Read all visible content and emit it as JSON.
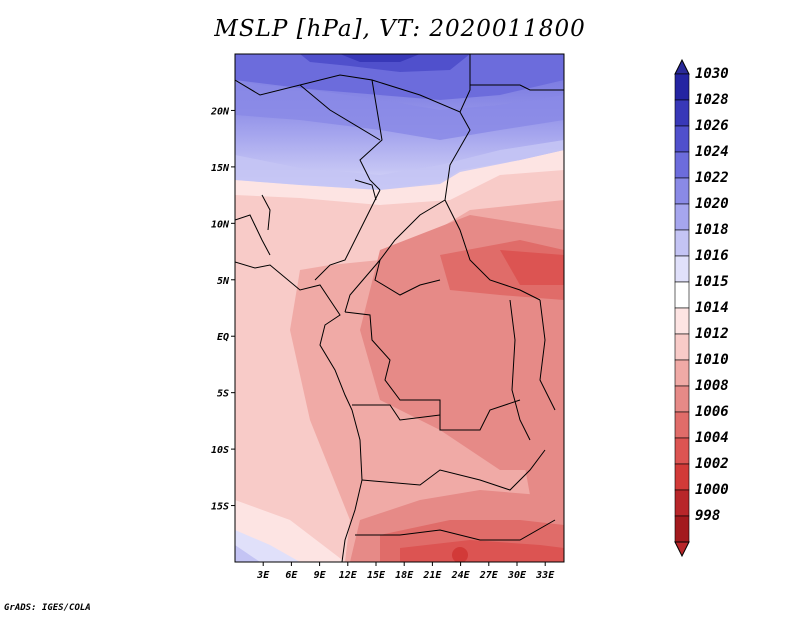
{
  "title": "MSLP [hPa], VT: 2020011800",
  "credit": "GrADS: IGES/COLA",
  "map": {
    "projection": "latlon",
    "lon_range": [
      0,
      35
    ],
    "lat_range": [
      -20,
      25
    ],
    "x_ticks": [
      {
        "value": 3,
        "label": "3E"
      },
      {
        "value": 6,
        "label": "6E"
      },
      {
        "value": 9,
        "label": "9E"
      },
      {
        "value": 12,
        "label": "12E"
      },
      {
        "value": 15,
        "label": "15E"
      },
      {
        "value": 18,
        "label": "18E"
      },
      {
        "value": 21,
        "label": "21E"
      },
      {
        "value": 24,
        "label": "24E"
      },
      {
        "value": 27,
        "label": "27E"
      },
      {
        "value": 30,
        "label": "30E"
      },
      {
        "value": 33,
        "label": "33E"
      }
    ],
    "y_ticks": [
      {
        "value": 20,
        "label": "20N"
      },
      {
        "value": 15,
        "label": "15N"
      },
      {
        "value": 10,
        "label": "10N"
      },
      {
        "value": 5,
        "label": "5N"
      },
      {
        "value": 0,
        "label": "EQ"
      },
      {
        "value": -5,
        "label": "5S"
      },
      {
        "value": -10,
        "label": "10S"
      },
      {
        "value": -15,
        "label": "15S"
      }
    ]
  },
  "colorbar": {
    "levels": [
      {
        "label": "998",
        "color": "#a31a1e"
      },
      {
        "label": "1000",
        "color": "#b8262a"
      },
      {
        "label": "1002",
        "color": "#d23a38"
      },
      {
        "label": "1004",
        "color": "#dc5452"
      },
      {
        "label": "1006",
        "color": "#e06c69"
      },
      {
        "label": "1008",
        "color": "#e68a87"
      },
      {
        "label": "1010",
        "color": "#f0aaa6"
      },
      {
        "label": "1012",
        "color": "#f8cbc8"
      },
      {
        "label": "1014",
        "color": "#fde4e3"
      },
      {
        "label": "1015",
        "color": "#ffffff"
      },
      {
        "label": "1016",
        "color": "#e0e0fa"
      },
      {
        "label": "1018",
        "color": "#c4c4f4"
      },
      {
        "label": "1020",
        "color": "#a6a6ee"
      },
      {
        "label": "1022",
        "color": "#8a8ae6"
      },
      {
        "label": "1024",
        "color": "#6c6cdc"
      },
      {
        "label": "1026",
        "color": "#5050cc"
      },
      {
        "label": "1028",
        "color": "#3838b8"
      },
      {
        "label": "1030",
        "color": "#2424a2"
      }
    ],
    "min_cap_color": "#b8262a",
    "max_cap_color": "#2a2a99"
  }
}
